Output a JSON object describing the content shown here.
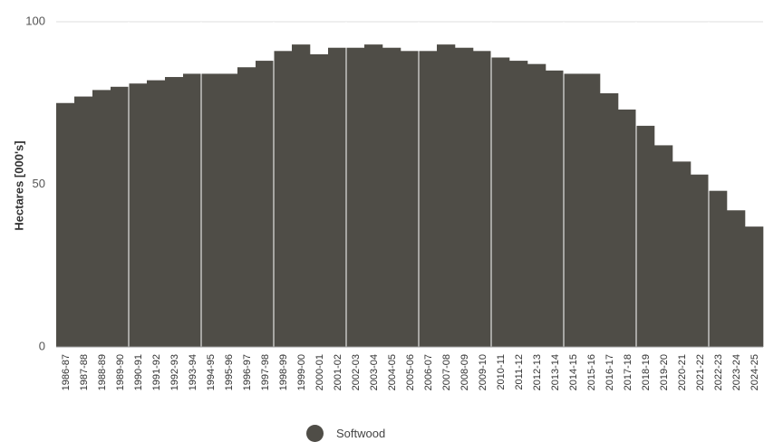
{
  "chart_data": {
    "type": "bar",
    "ylabel": "Hectares [000's]",
    "xlabel": "",
    "ylim": [
      0,
      100
    ],
    "yticks": [
      0,
      50,
      100
    ],
    "grid": false,
    "legend_placement": "bottom",
    "bar_color": "#4f4d47",
    "categories": [
      "1986-87",
      "1987-88",
      "1988-89",
      "1989-90",
      "1990-91",
      "1991-92",
      "1992-93",
      "1993-94",
      "1994-95",
      "1995-96",
      "1996-97",
      "1997-98",
      "1998-99",
      "1999-00",
      "2000-01",
      "2001-02",
      "2002-03",
      "2003-04",
      "2004-05",
      "2005-06",
      "2006-07",
      "2007-08",
      "2008-09",
      "2009-10",
      "2010-11",
      "2011-12",
      "2012-13",
      "2013-14",
      "2014-15",
      "2015-16",
      "2016-17",
      "2017-18",
      "2018-19",
      "2019-20",
      "2020-21",
      "2021-22",
      "2022-23",
      "2023-24",
      "2024-25"
    ],
    "series": [
      {
        "name": "Softwood",
        "values": [
          75,
          77,
          79,
          80,
          81,
          82,
          83,
          84,
          84,
          84,
          86,
          88,
          91,
          93,
          90,
          92,
          92,
          93,
          92,
          91,
          91,
          93,
          92,
          91,
          89,
          88,
          87,
          85,
          84,
          84,
          78,
          73,
          68,
          62,
          57,
          53,
          48,
          42,
          37
        ]
      }
    ]
  }
}
